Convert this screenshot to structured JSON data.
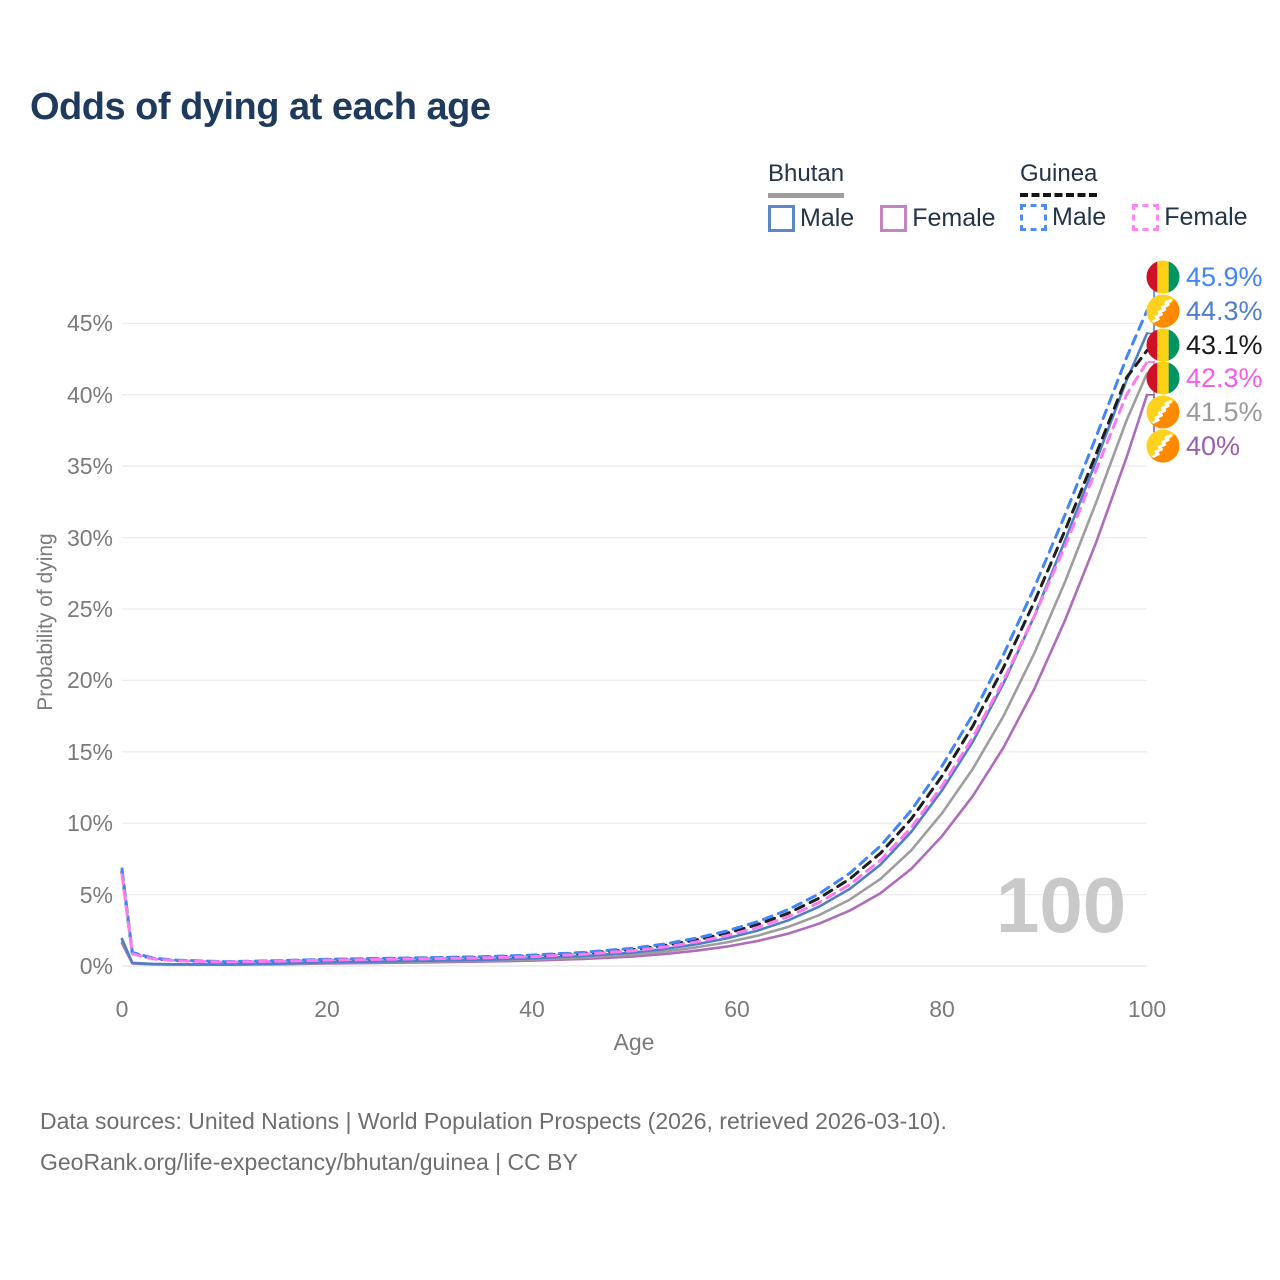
{
  "title": "Odds of dying at each age",
  "legend": {
    "groups": [
      {
        "label": "Bhutan",
        "underline": {
          "style": "solid",
          "color": "#9e9e9e"
        },
        "items": [
          {
            "label": "Male",
            "color": "#5b87c5",
            "dash": false
          },
          {
            "label": "Female",
            "color": "#c285c0",
            "dash": false
          }
        ]
      },
      {
        "label": "Guinea",
        "underline": {
          "style": "dashed",
          "color": "#141414"
        },
        "items": [
          {
            "label": "Male",
            "color": "#4d8cf5",
            "dash": true
          },
          {
            "label": "Female",
            "color": "#ff85f3",
            "dash": true
          }
        ]
      }
    ]
  },
  "axes": {
    "x": {
      "label": "Age",
      "ticks": [
        0,
        20,
        40,
        60,
        80,
        100
      ],
      "range": [
        0,
        100
      ]
    },
    "y": {
      "label": "Probability of dying",
      "ticks": [
        "0%",
        "5%",
        "10%",
        "15%",
        "20%",
        "25%",
        "30%",
        "35%",
        "40%",
        "45%"
      ],
      "tick_values": [
        0,
        5,
        10,
        15,
        20,
        25,
        30,
        35,
        40,
        45
      ],
      "range": [
        0,
        47
      ]
    }
  },
  "watermark": "100",
  "end_labels": [
    {
      "value": "45.9%",
      "series": "Guinea Male",
      "flag": "guinea",
      "color": "#4285f4",
      "end_value": 45.9
    },
    {
      "value": "44.3%",
      "series": "Bhutan Male",
      "flag": "bhutan",
      "color": "#4f7fc9",
      "end_value": 44.3
    },
    {
      "value": "43.1%",
      "series": "Guinea",
      "flag": "guinea",
      "color": "#1b1b1b",
      "end_value": 43.1
    },
    {
      "value": "42.3%",
      "series": "Guinea Female",
      "flag": "guinea",
      "color": "#f55ce8",
      "end_value": 42.3
    },
    {
      "value": "41.5%",
      "series": "Bhutan",
      "flag": "bhutan",
      "color": "#9a9a9a",
      "end_value": 41.5
    },
    {
      "value": "40%",
      "series": "Bhutan Female",
      "flag": "bhutan",
      "color": "#9c5eb0",
      "end_value": 40
    }
  ],
  "flags": {
    "guinea": {
      "red": "#CE1126",
      "yellow": "#FCD116",
      "green": "#009460"
    },
    "bhutan": {
      "yellow": "#FFD21E",
      "orange": "#FF8A00",
      "dragon": "#ffffff"
    }
  },
  "footer": {
    "line1": "Data sources: United Nations | World Population Prospects (2026, retrieved 2026-03-10).",
    "line2": "GeoRank.org/life-expectancy/bhutan/guinea | CC BY"
  },
  "chart_data": {
    "type": "line",
    "title": "Odds of dying at each age",
    "xlabel": "Age",
    "ylabel": "Probability of dying",
    "xlim": [
      0,
      100
    ],
    "ylim": [
      0,
      47
    ],
    "grid": true,
    "legend_position": "top-right",
    "x": [
      0,
      1,
      3,
      5,
      10,
      15,
      20,
      25,
      30,
      35,
      40,
      45,
      50,
      53,
      56,
      59,
      62,
      65,
      68,
      71,
      74,
      77,
      80,
      83,
      86,
      89,
      92,
      95,
      98,
      100
    ],
    "series": [
      {
        "name": "Bhutan Female",
        "country": "Bhutan",
        "sex": "Female",
        "color": "#ae6cbc",
        "dash": false,
        "end_label": "40%",
        "values": [
          1.6,
          0.18,
          0.12,
          0.1,
          0.09,
          0.12,
          0.18,
          0.22,
          0.26,
          0.31,
          0.38,
          0.5,
          0.67,
          0.84,
          1.07,
          1.36,
          1.75,
          2.27,
          2.96,
          3.88,
          5.1,
          6.8,
          9.1,
          11.9,
          15.3,
          19.4,
          24.2,
          29.6,
          35.6,
          40.0
        ]
      },
      {
        "name": "Bhutan",
        "country": "Bhutan",
        "sex": "Both",
        "color": "#9e9e9e",
        "dash": false,
        "end_label": "41.5%",
        "values": [
          1.8,
          0.2,
          0.14,
          0.11,
          0.1,
          0.14,
          0.22,
          0.27,
          0.32,
          0.37,
          0.46,
          0.6,
          0.81,
          1.02,
          1.3,
          1.65,
          2.12,
          2.74,
          3.56,
          4.65,
          6.1,
          8.1,
          10.7,
          13.8,
          17.5,
          21.9,
          26.9,
          32.4,
          38.2,
          41.5
        ]
      },
      {
        "name": "Bhutan Male",
        "country": "Bhutan",
        "sex": "Male",
        "color": "#4f7fc9",
        "dash": false,
        "end_label": "44.3%",
        "values": [
          1.9,
          0.22,
          0.15,
          0.12,
          0.11,
          0.16,
          0.26,
          0.31,
          0.37,
          0.43,
          0.54,
          0.7,
          0.95,
          1.2,
          1.52,
          1.93,
          2.48,
          3.2,
          4.15,
          5.4,
          7.1,
          9.4,
          12.3,
          15.7,
          19.8,
          24.5,
          29.8,
          35.3,
          41.0,
          44.3
        ]
      },
      {
        "name": "Guinea",
        "country": "Guinea",
        "sex": "Both",
        "color": "#1e1e1e",
        "dash": true,
        "end_label": "43.1%",
        "values": [
          6.6,
          0.9,
          0.52,
          0.4,
          0.28,
          0.35,
          0.44,
          0.5,
          0.55,
          0.61,
          0.71,
          0.89,
          1.17,
          1.45,
          1.82,
          2.29,
          2.9,
          3.7,
          4.75,
          6.1,
          7.9,
          10.3,
          13.3,
          16.8,
          20.9,
          25.5,
          30.5,
          35.8,
          41.2,
          43.1
        ]
      },
      {
        "name": "Guinea Male",
        "country": "Guinea",
        "sex": "Male",
        "color": "#4285f4",
        "dash": true,
        "end_label": "45.9%",
        "values": [
          6.8,
          0.95,
          0.55,
          0.42,
          0.3,
          0.37,
          0.47,
          0.53,
          0.58,
          0.65,
          0.76,
          0.95,
          1.25,
          1.55,
          1.95,
          2.45,
          3.1,
          3.95,
          5.05,
          6.5,
          8.4,
          10.9,
          14.0,
          17.6,
          21.8,
          26.5,
          31.6,
          37.0,
          42.6,
          45.9
        ]
      },
      {
        "name": "Guinea Female",
        "country": "Guinea",
        "sex": "Female",
        "color": "#fb7af0",
        "dash": true,
        "end_label": "42.3%",
        "values": [
          6.4,
          0.85,
          0.5,
          0.38,
          0.27,
          0.33,
          0.41,
          0.46,
          0.51,
          0.57,
          0.66,
          0.82,
          1.08,
          1.34,
          1.68,
          2.12,
          2.7,
          3.45,
          4.45,
          5.7,
          7.4,
          9.7,
          12.6,
          16.0,
          20.0,
          24.5,
          29.4,
          34.7,
          40.0,
          42.3
        ]
      }
    ]
  }
}
